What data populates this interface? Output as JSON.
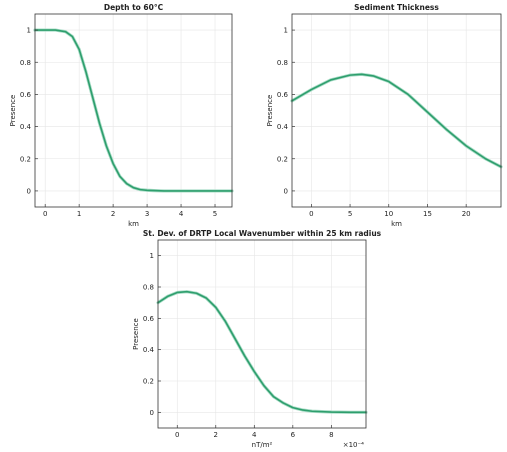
{
  "chart_data": [
    {
      "type": "line",
      "title": "Depth  to  60°C",
      "xlabel": "km",
      "ylabel": "Presence",
      "xlim": [
        -0.3,
        5.5
      ],
      "ylim": [
        -0.1,
        1.1
      ],
      "xticks": [
        0,
        1,
        2,
        3,
        4,
        5
      ],
      "yticks": [
        0,
        0.2,
        0.4,
        0.6,
        0.8,
        1
      ],
      "xtick_labels": [
        "0",
        "1",
        "2",
        "3",
        "4",
        "5"
      ],
      "ytick_labels": [
        "0",
        "0.2",
        "0.4",
        "0.6",
        "0.8",
        "1"
      ],
      "x_exponent_label": "",
      "grid": true,
      "color": "#2e9e6d",
      "series": [
        {
          "x": [
            -0.3,
            0,
            0.3,
            0.6,
            0.8,
            1.0,
            1.2,
            1.4,
            1.6,
            1.8,
            2.0,
            2.2,
            2.4,
            2.6,
            2.8,
            3.0,
            3.2,
            3.5,
            4.0,
            4.5,
            5.0,
            5.5
          ],
          "y": [
            1.0,
            1.0,
            1.0,
            0.99,
            0.96,
            0.88,
            0.74,
            0.58,
            0.42,
            0.28,
            0.17,
            0.09,
            0.045,
            0.02,
            0.008,
            0.004,
            0.002,
            0.0,
            0.0,
            0.0,
            0.0,
            0.0
          ]
        }
      ]
    },
    {
      "type": "line",
      "title": "Sediment Thickness",
      "xlabel": "km",
      "ylabel": "Presence",
      "xlim": [
        -2.5,
        24.5
      ],
      "ylim": [
        -0.1,
        1.1
      ],
      "xticks": [
        0,
        5,
        10,
        15,
        20
      ],
      "yticks": [
        0,
        0.2,
        0.4,
        0.6,
        0.8,
        1
      ],
      "xtick_labels": [
        "0",
        "5",
        "10",
        "15",
        "20"
      ],
      "ytick_labels": [
        "0",
        "0.2",
        "0.4",
        "0.6",
        "0.8",
        "1"
      ],
      "x_exponent_label": "",
      "grid": true,
      "color": "#2e9e6d",
      "series": [
        {
          "x": [
            -2.5,
            0,
            2.5,
            5,
            6.5,
            8,
            10,
            12.5,
            15,
            17.5,
            20,
            22.5,
            24.5
          ],
          "y": [
            0.56,
            0.63,
            0.69,
            0.72,
            0.725,
            0.715,
            0.68,
            0.6,
            0.49,
            0.38,
            0.28,
            0.2,
            0.15
          ]
        }
      ]
    },
    {
      "type": "line",
      "title": "St. Dev. of DRTP Local Wavenumber within 25 km radius",
      "xlabel": "nT/m²",
      "ylabel": "Presence",
      "xlim": [
        -1.0,
        9.8
      ],
      "ylim": [
        -0.1,
        1.1
      ],
      "xticks": [
        0,
        2,
        4,
        6,
        8
      ],
      "yticks": [
        0,
        0.2,
        0.4,
        0.6,
        0.8,
        1
      ],
      "xtick_labels": [
        "0",
        "2",
        "4",
        "6",
        "8"
      ],
      "ytick_labels": [
        "0",
        "0.2",
        "0.4",
        "0.6",
        "0.8",
        "1"
      ],
      "x_exponent_label": "×10⁻⁴",
      "grid": true,
      "color": "#2e9e6d",
      "series": [
        {
          "x": [
            -1.0,
            -0.5,
            0,
            0.5,
            1.0,
            1.5,
            2.0,
            2.5,
            3.0,
            3.5,
            4.0,
            4.5,
            5.0,
            5.5,
            6.0,
            6.5,
            7.0,
            8.0,
            9.0,
            9.8
          ],
          "y": [
            0.7,
            0.74,
            0.765,
            0.77,
            0.76,
            0.73,
            0.67,
            0.58,
            0.47,
            0.36,
            0.26,
            0.17,
            0.1,
            0.06,
            0.03,
            0.015,
            0.007,
            0.002,
            0.0,
            0.0
          ]
        }
      ]
    }
  ]
}
